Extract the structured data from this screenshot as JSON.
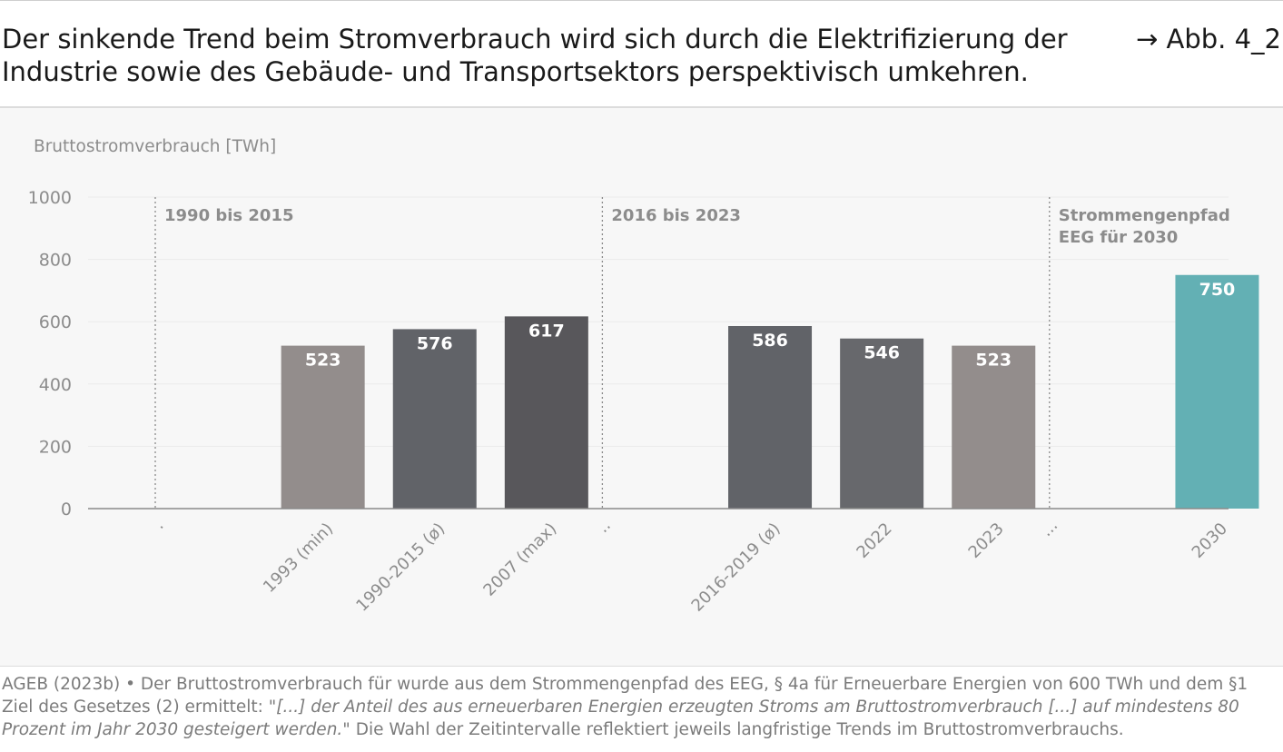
{
  "header": {
    "title": "Der sinkende Trend beim Stromverbrauch wird sich durch die Elektrifizierung der Industrie sowie des Gebäude- und Transportsektors perspektivisch umkehren.",
    "figure_ref": "→ Abb. 4_2"
  },
  "chart_data": {
    "type": "bar",
    "ylabel": "Bruttostromverbrauch [TWh]",
    "ylim": [
      0,
      1000
    ],
    "yticks": [
      0,
      200,
      400,
      600,
      800,
      1000
    ],
    "grid": true,
    "categories": [
      "·",
      "1993 (min)",
      "1990-2015 (ø)",
      "2007 (max)",
      "··",
      "2016-2019 (ø)",
      "2022",
      "2023",
      "···",
      "2030"
    ],
    "values": [
      null,
      523,
      576,
      617,
      null,
      586,
      546,
      523,
      null,
      750
    ],
    "value_labels": [
      "",
      "523",
      "576",
      "617",
      "",
      "586",
      "546",
      "523",
      "",
      "750"
    ],
    "bar_colors": [
      "",
      "#938d8c",
      "#616368",
      "#58575b",
      "",
      "#616368",
      "#67686c",
      "#938d8c",
      "",
      "#63b0b4"
    ],
    "groups": [
      {
        "label": "1990 bis 2015"
      },
      {
        "label": "2016 bis 2023"
      },
      {
        "label": "Strommengenpfad",
        "label_line2": "EEG für 2030"
      }
    ]
  },
  "footer": {
    "text_start": "AGEB (2023b) • Der Bruttostromverbrauch für wurde aus dem Strommengenpfad des EEG, § 4a für Erneuerbare Energien von 600 TWh und dem §1 Ziel des Gesetzes (2) ermittelt: ",
    "quote": "\"[...] der Anteil des aus erneuerbaren Energien erzeugten Stroms am Bruttostromverbrauch [...] auf mindestens 80 Prozent im Jahr 2030 gesteigert werden.\"",
    "text_end": " Die Wahl der Zeitintervalle reflektiert jeweils langfristige Trends im Bruttostromverbrauchs."
  },
  "colors": {
    "title": "#1a1a1a",
    "axis_text": "#8c8c8c",
    "group_label": "#8c8c8c",
    "grid": "#ebebeb",
    "baseline": "#8a8a8a",
    "divider": "#8a8a8a",
    "panel_bg": "#f7f7f7"
  }
}
